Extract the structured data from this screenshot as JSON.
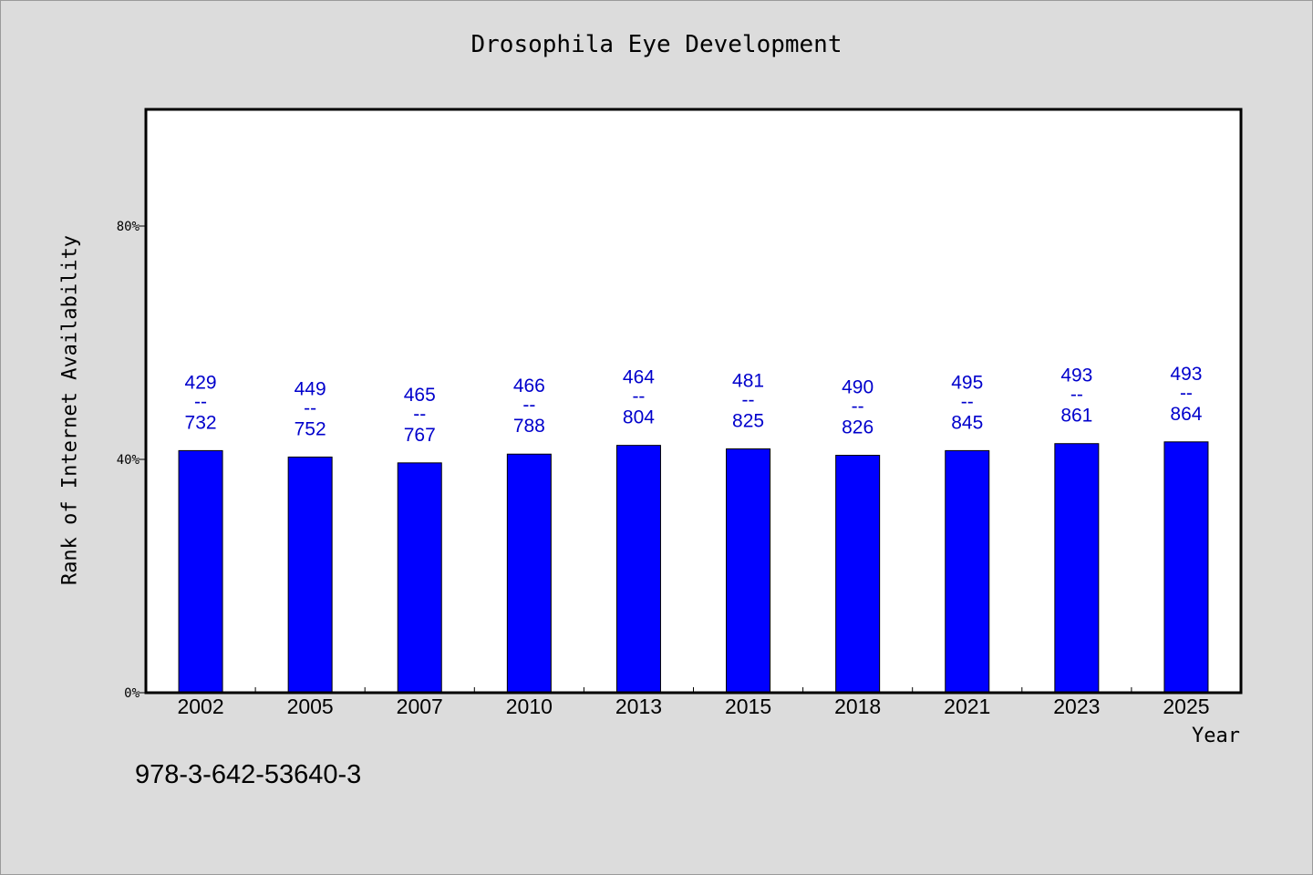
{
  "footnote": "978-3-642-53640-3",
  "chart_data": {
    "type": "bar",
    "title": "Drosophila Eye Development",
    "xlabel": "Year",
    "ylabel": "Rank of Internet Availability",
    "categories": [
      "2002",
      "2005",
      "2007",
      "2010",
      "2013",
      "2015",
      "2018",
      "2021",
      "2023",
      "2025"
    ],
    "values": [
      41.5,
      40.4,
      39.4,
      40.9,
      42.4,
      41.8,
      40.7,
      41.5,
      42.7,
      43.0
    ],
    "value_unit": "%",
    "ylim": [
      0,
      100
    ],
    "yticks": [
      0,
      40,
      80
    ],
    "ytick_labels": [
      "0%",
      "40%",
      "80%"
    ],
    "bar_labels": [
      {
        "top": "429",
        "sep": "--",
        "bottom": "732"
      },
      {
        "top": "449",
        "sep": "--",
        "bottom": "752"
      },
      {
        "top": "465",
        "sep": "--",
        "bottom": "767"
      },
      {
        "top": "466",
        "sep": "--",
        "bottom": "788"
      },
      {
        "top": "464",
        "sep": "--",
        "bottom": "804"
      },
      {
        "top": "481",
        "sep": "--",
        "bottom": "825"
      },
      {
        "top": "490",
        "sep": "--",
        "bottom": "826"
      },
      {
        "top": "495",
        "sep": "--",
        "bottom": "845"
      },
      {
        "top": "493",
        "sep": "--",
        "bottom": "861"
      },
      {
        "top": "493",
        "sep": "--",
        "bottom": "864"
      }
    ],
    "grid": false,
    "legend": "none",
    "colors": {
      "bar": "#0000ff",
      "bar_label": "#0000cc",
      "plot_background": "#ffffff",
      "figure_background": "#dcdcdc"
    }
  }
}
